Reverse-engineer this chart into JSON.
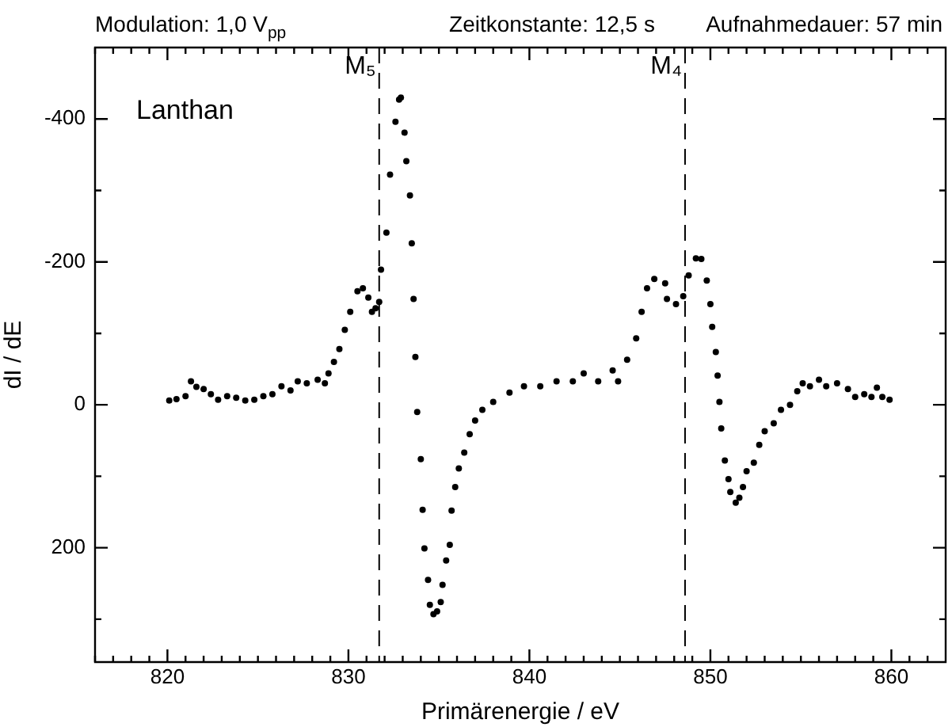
{
  "chart_data": {
    "type": "scatter",
    "xlabel": "Primärenergie / eV",
    "ylabel": "dI / dE",
    "annotations": [
      "Modulation: 1,0 V$_{pp}$",
      "Zeitkonstante: 12,5 s",
      "Aufnahmedauer: 57 min",
      "Lanthan"
    ],
    "xlim": [
      816,
      863
    ],
    "ylim": [
      360,
      -500
    ],
    "xticks": [
      {
        "value": 816,
        "label": null
      },
      {
        "value": 817,
        "label": null
      },
      {
        "value": 818,
        "label": null
      },
      {
        "value": 819,
        "label": null
      },
      820,
      {
        "value": 821,
        "label": null
      },
      {
        "value": 822,
        "label": null
      },
      {
        "value": 823,
        "label": null
      },
      {
        "value": 824,
        "label": null
      },
      {
        "value": 825,
        "label": null
      },
      {
        "value": 826,
        "label": null
      },
      {
        "value": 827,
        "label": null
      },
      {
        "value": 828,
        "label": null
      },
      {
        "value": 829,
        "label": null
      },
      830,
      {
        "value": 831,
        "label": null
      },
      {
        "value": 832,
        "label": null
      },
      {
        "value": 833,
        "label": null
      },
      {
        "value": 834,
        "label": null
      },
      {
        "value": 835,
        "label": null
      },
      {
        "value": 836,
        "label": null
      },
      {
        "value": 837,
        "label": null
      },
      {
        "value": 838,
        "label": null
      },
      {
        "value": 839,
        "label": null
      },
      840,
      {
        "value": 841,
        "label": null
      },
      {
        "value": 842,
        "label": null
      },
      {
        "value": 843,
        "label": null
      },
      {
        "value": 844,
        "label": null
      },
      {
        "value": 845,
        "label": null
      },
      {
        "value": 846,
        "label": null
      },
      {
        "value": 847,
        "label": null
      },
      {
        "value": 848,
        "label": null
      },
      {
        "value": 849,
        "label": null
      },
      850,
      {
        "value": 851,
        "label": null
      },
      {
        "value": 852,
        "label": null
      },
      {
        "value": 853,
        "label": null
      },
      {
        "value": 854,
        "label": null
      },
      {
        "value": 855,
        "label": null
      },
      {
        "value": 856,
        "label": null
      },
      {
        "value": 857,
        "label": null
      },
      {
        "value": 858,
        "label": null
      },
      {
        "value": 859,
        "label": null
      },
      860,
      {
        "value": 861,
        "label": null
      },
      {
        "value": 862,
        "label": null
      }
    ],
    "yticks": [
      {
        "value": 300,
        "label": null
      },
      200,
      {
        "value": 100,
        "label": null
      },
      0,
      {
        "value": -100,
        "label": null
      },
      -200,
      {
        "value": -300,
        "label": null
      },
      -400
    ],
    "marker": "circle",
    "ref_lines": [
      {
        "axis": "x",
        "value": 831.7,
        "label": "M₅",
        "line_style": "dashed"
      },
      {
        "axis": "x",
        "value": 848.6,
        "label": "M₄",
        "line_style": "dashed"
      }
    ],
    "series": [
      {
        "color": "#000000",
        "x": [
          820.1,
          820.5,
          821,
          821.3,
          821.6,
          822,
          822.4,
          822.8,
          823.3,
          823.8,
          824.3,
          824.8,
          825.3,
          825.8,
          826.3,
          826.8,
          827.2,
          827.7,
          828.3,
          828.7,
          828.9,
          829.2,
          829.5,
          829.8,
          830.1,
          830.5,
          830.8,
          831.1,
          831.3,
          831.5,
          831.7,
          831.8,
          832.1,
          832.3,
          832.6,
          832.8,
          832.9,
          833.1,
          833.2,
          833.4,
          833.5,
          833.6,
          833.7,
          833.8,
          834.0,
          834.1,
          834.2,
          834.4,
          834.5,
          834.7,
          834.9,
          835.1,
          835.2,
          835.4,
          835.6,
          835.7,
          835.9,
          836.1,
          836.4,
          836.7,
          837.0,
          837.4,
          838.0,
          838.9,
          839.7,
          840.6,
          841.5,
          842.4,
          843.0,
          843.8,
          844.6,
          844.9,
          845.4,
          845.9,
          846.2,
          846.5,
          846.9,
          847.5,
          847.6,
          848.1,
          848.5,
          848.8,
          849.2,
          849.5,
          849.8,
          850.0,
          850.1,
          850.3,
          850.4,
          850.5,
          850.6,
          850.8,
          851.0,
          851.1,
          851.4,
          851.6,
          851.8,
          852.0,
          852.4,
          852.7,
          853.0,
          853.5,
          853.9,
          854.4,
          854.8,
          855.1,
          855.5,
          856.0,
          856.4,
          857.0,
          857.6,
          858.0,
          858.5,
          858.9,
          859.2,
          859.5,
          859.9
        ],
        "values": [
          -6,
          -8,
          -12,
          -33,
          -25,
          -22,
          -15,
          -7,
          -12,
          -10,
          -6,
          -7,
          -12,
          -15,
          -26,
          -20,
          -33,
          -30,
          -35,
          -30,
          -44,
          -60,
          -78,
          -105,
          -130,
          -159,
          -163,
          -150,
          -130,
          -135,
          -144,
          -189,
          -241,
          -322,
          -396,
          -427,
          -430,
          -381,
          -341,
          -293,
          -226,
          -148,
          -67,
          10,
          76,
          147,
          201,
          245,
          280,
          293,
          289,
          276,
          252,
          218,
          196,
          148,
          115,
          89,
          67,
          41,
          22,
          7,
          -4,
          -17,
          -26,
          -26,
          -33,
          -33,
          -44,
          -33,
          -48,
          -33,
          -63,
          -93,
          -130,
          -163,
          -176,
          -170,
          -148,
          -141,
          -152,
          -181,
          -205,
          -204,
          -174,
          -141,
          -109,
          -74,
          -41,
          -4,
          33,
          78,
          104,
          122,
          137,
          130,
          115,
          93,
          81,
          56,
          37,
          26,
          7,
          0,
          -19,
          -30,
          -26,
          -35,
          -26,
          -30,
          -22,
          -11,
          -15,
          -11,
          -24,
          -11,
          -7
        ]
      }
    ]
  }
}
